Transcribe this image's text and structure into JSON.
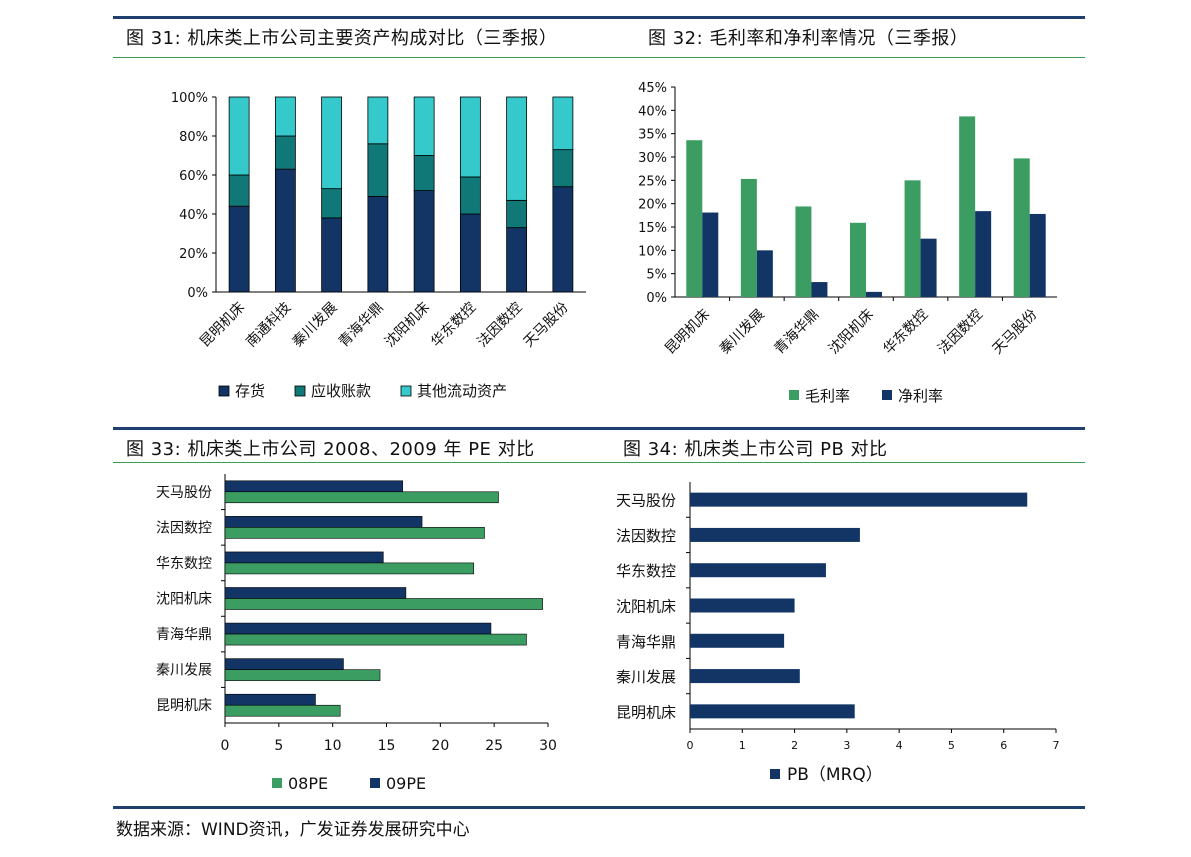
{
  "figures": {
    "fig31_title": "图 31:  机床类上市公司主要资产构成对比（三季报）",
    "fig32_title": "图 32:  毛利率和净利率情况（三季报）",
    "fig33_title": "图 33:  机床类上市公司 2008、2009 年 PE 对比",
    "fig34_title": "图 34:  机床类上市公司 PB 对比"
  },
  "source": "数据来源：WIND资讯，广发证券发展研究中心",
  "colors": {
    "navy": "#123566",
    "teal": "#117878",
    "cyan": "#35c9cc",
    "green": "#3b9d62",
    "rule_blue": "#1f3f6e",
    "rule_green": "#3a9b52"
  },
  "chart_data": [
    {
      "id": "fig31",
      "type": "bar",
      "stacked": true,
      "categories": [
        "昆明机床",
        "南通科技",
        "秦川发展",
        "青海华鼎",
        "沈阳机床",
        "华东数控",
        "法因数控",
        "天马股份"
      ],
      "series": [
        {
          "name": "存货",
          "color": "#123566",
          "values": [
            44,
            63,
            38,
            49,
            52,
            40,
            33,
            54
          ]
        },
        {
          "name": "应收账款",
          "color": "#117878",
          "values": [
            16,
            17,
            15,
            27,
            18,
            19,
            14,
            19
          ]
        },
        {
          "name": "其他流动资产",
          "color": "#35c9cc",
          "values": [
            40,
            20,
            47,
            24,
            30,
            41,
            53,
            27
          ]
        }
      ],
      "ylim": [
        0,
        100
      ],
      "yticks": [
        "0%",
        "20%",
        "40%",
        "60%",
        "80%",
        "100%"
      ],
      "legend": "bottom"
    },
    {
      "id": "fig32",
      "type": "bar",
      "categories": [
        "昆明机床",
        "秦川发展",
        "青海华鼎",
        "沈阳机床",
        "华东数控",
        "法因数控",
        "天马股份"
      ],
      "series": [
        {
          "name": "毛利率",
          "color": "#3b9d62",
          "values": [
            33.6,
            25.3,
            19.4,
            15.9,
            25.0,
            38.7,
            29.7
          ]
        },
        {
          "name": "净利率",
          "color": "#123566",
          "values": [
            18.1,
            10.0,
            3.2,
            1.1,
            12.5,
            18.4,
            17.8
          ]
        }
      ],
      "ylim": [
        0,
        45
      ],
      "yticks": [
        "0%",
        "5%",
        "10%",
        "15%",
        "20%",
        "25%",
        "30%",
        "35%",
        "40%",
        "45%"
      ],
      "legend": "bottom"
    },
    {
      "id": "fig33",
      "type": "bar",
      "orientation": "horizontal",
      "categories": [
        "天马股份",
        "法因数控",
        "华东数控",
        "沈阳机床",
        "青海华鼎",
        "秦川发展",
        "昆明机床"
      ],
      "series": [
        {
          "name": "09PE",
          "color": "#123566",
          "values": [
            16.5,
            18.3,
            14.7,
            16.8,
            24.7,
            11.0,
            8.4
          ]
        },
        {
          "name": "08PE",
          "color": "#3b9d62",
          "values": [
            25.4,
            24.1,
            23.1,
            29.5,
            28.0,
            14.4,
            10.7
          ]
        }
      ],
      "legend_order": [
        "08PE",
        "09PE"
      ],
      "xlim": [
        0,
        30
      ],
      "xticks": [
        "0",
        "5",
        "10",
        "15",
        "20",
        "25",
        "30"
      ],
      "legend": "bottom"
    },
    {
      "id": "fig34",
      "type": "bar",
      "orientation": "horizontal",
      "categories": [
        "天马股份",
        "法因数控",
        "华东数控",
        "沈阳机床",
        "青海华鼎",
        "秦川发展",
        "昆明机床"
      ],
      "series": [
        {
          "name": "PB（MRQ）",
          "color": "#123566",
          "values": [
            6.45,
            3.25,
            2.6,
            2.0,
            1.8,
            2.1,
            3.15
          ]
        }
      ],
      "xlim": [
        0,
        7
      ],
      "xticks": [
        "0",
        "1",
        "2",
        "3",
        "4",
        "5",
        "6",
        "7"
      ],
      "legend": "bottom"
    }
  ]
}
